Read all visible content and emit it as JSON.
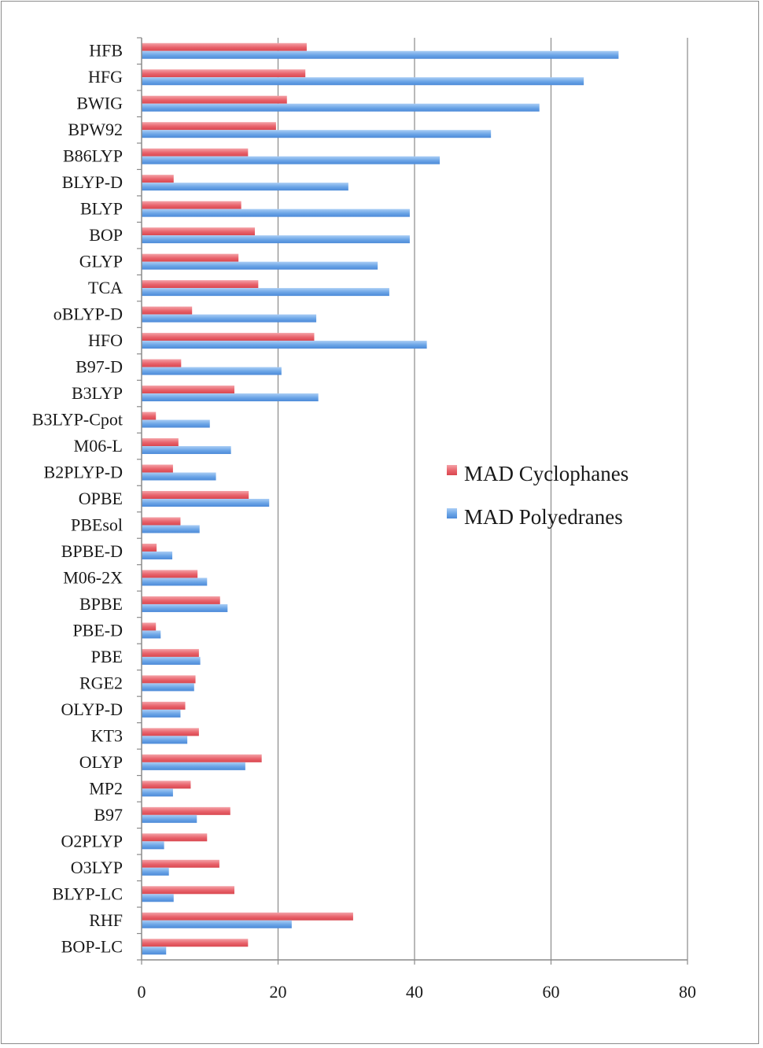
{
  "chart_data": {
    "type": "bar",
    "orientation": "horizontal",
    "title": "",
    "xlabel": "",
    "ylabel": "",
    "xlim": [
      0,
      80
    ],
    "xticks": [
      0,
      20,
      40,
      60,
      80
    ],
    "grid": "vertical",
    "legend_position": "right-middle",
    "categories": [
      "HFB",
      "HFG",
      "BWIG",
      "BPW92",
      "B86LYP",
      "BLYP-D",
      "BLYP",
      "BOP",
      "GLYP",
      "TCA",
      "oBLYP-D",
      "HFO",
      "B97-D",
      "B3LYP",
      "B3LYP-Cpot",
      "M06-L",
      "B2PLYP-D",
      "OPBE",
      "PBEsol",
      "BPBE-D",
      "M06-2X",
      "BPBE",
      "PBE-D",
      "PBE",
      "RGE2",
      "OLYP-D",
      "KT3",
      "OLYP",
      "MP2",
      "B97",
      "O2PLYP",
      "O3LYP",
      "BLYP-LC",
      "RHF",
      "BOP-LC"
    ],
    "series": [
      {
        "name": "MAD Cyclophanes",
        "color": "#e8626b",
        "values": [
          24.2,
          24.0,
          21.3,
          19.7,
          15.6,
          4.7,
          14.6,
          16.6,
          14.2,
          17.1,
          7.4,
          25.3,
          5.8,
          13.6,
          2.1,
          5.4,
          4.6,
          15.7,
          5.7,
          2.2,
          8.2,
          11.5,
          2.1,
          8.4,
          7.9,
          6.4,
          8.4,
          17.6,
          7.2,
          13.0,
          9.6,
          11.4,
          13.6,
          31.0,
          15.6
        ]
      },
      {
        "name": "MAD Polyedranes",
        "color": "#6aa4e6",
        "values": [
          69.9,
          64.8,
          58.3,
          51.2,
          43.7,
          30.3,
          39.3,
          39.3,
          34.6,
          36.3,
          25.6,
          41.8,
          20.5,
          25.9,
          10.0,
          13.1,
          10.9,
          18.7,
          8.5,
          4.5,
          9.6,
          12.6,
          2.8,
          8.6,
          7.7,
          5.7,
          6.7,
          15.2,
          4.6,
          8.1,
          3.3,
          4.0,
          4.7,
          22.0,
          3.6
        ]
      }
    ]
  }
}
